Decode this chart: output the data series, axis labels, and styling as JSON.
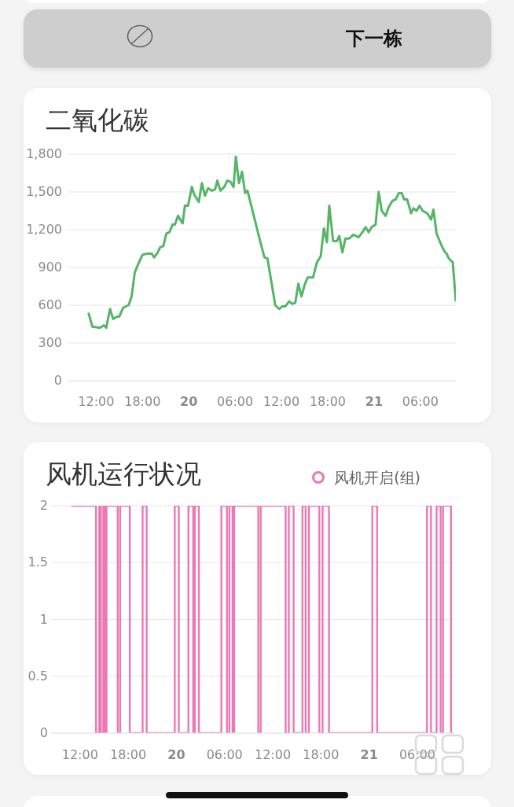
{
  "chart_data": [
    {
      "type": "other",
      "annotations": [
        "下一栋"
      ]
    },
    {
      "type": "line",
      "title": "二氧化碳",
      "color": "#55b567",
      "x": [
        "--01-19T11:00",
        "--01-19T11:30",
        "--01-19T12:30",
        "--01-19T13:00",
        "--01-19T13:18",
        "--01-19T13:48",
        "--01-19T14:12",
        "--01-19T14:42",
        "--01-19T15:00",
        "--01-19T15:30",
        "--01-19T16:12",
        "--01-19T16:36",
        "--01-19T17:00",
        "--01-19T17:24",
        "--01-19T18:00",
        "--01-19T18:36",
        "--01-19T19:12",
        "--01-19T19:30",
        "--01-19T19:54",
        "--01-19T20:18",
        "--01-19T20:42",
        "--01-19T21:06",
        "--01-19T21:30",
        "--01-19T21:54",
        "--01-19T22:12",
        "--01-19T22:36",
        "--01-19T23:12",
        "--01-19T23:30",
        "--01-19T23:54",
        "--01-20T00:24",
        "--01-20T00:42",
        "--01-20T01:18",
        "--01-20T01:42",
        "--01-20T02:06",
        "--01-20T02:30",
        "--01-20T03:00",
        "--01-20T03:24",
        "--01-20T03:42",
        "--01-20T04:06",
        "--01-20T04:36",
        "--01-20T05:00",
        "--01-20T05:24",
        "--01-20T05:48",
        "--01-20T06:06",
        "--01-20T06:30",
        "--01-20T06:54",
        "--01-20T07:18",
        "--01-20T07:36",
        "--01-20T08:06",
        "--01-20T09:12",
        "--01-20T09:48",
        "--01-20T10:12",
        "--01-20T11:12",
        "--01-20T11:42",
        "--01-20T12:06",
        "--01-20T12:30",
        "--01-20T13:00",
        "--01-20T13:24",
        "--01-20T13:48",
        "--01-20T14:12",
        "--01-20T14:36",
        "--01-20T15:00",
        "--01-20T15:24",
        "--01-20T16:06",
        "--01-20T16:36",
        "--01-20T17:06",
        "--01-20T17:30",
        "--01-20T17:54",
        "--01-20T18:12",
        "--01-20T18:42",
        "--01-20T19:12",
        "--01-20T19:30",
        "--01-20T19:54",
        "--01-20T20:18",
        "--01-20T20:48",
        "--01-20T21:18",
        "--01-20T22:00",
        "--01-20T22:30",
        "--01-20T22:54",
        "--01-20T23:18",
        "--01-20T23:42",
        "--01-21T00:12",
        "--01-21T00:36",
        "--01-21T01:00",
        "--01-21T01:30",
        "--01-21T01:54",
        "--01-21T02:24",
        "--01-21T02:48",
        "--01-21T03:12",
        "--01-21T03:36",
        "--01-21T03:54",
        "--01-21T04:18",
        "--01-21T04:48",
        "--01-21T05:06",
        "--01-21T05:30",
        "--01-21T05:54",
        "--01-21T06:18",
        "--01-21T06:54",
        "--01-21T07:24",
        "--01-21T07:42",
        "--01-21T08:06",
        "--01-21T08:42",
        "--01-21T09:06",
        "--01-21T09:24",
        "--01-21T09:42",
        "--01-21T10:12",
        "--01-21T10:36"
      ],
      "values": [
        540,
        430,
        420,
        440,
        420,
        570,
        490,
        510,
        510,
        580,
        600,
        670,
        860,
        920,
        1000,
        1010,
        1010,
        980,
        1010,
        1060,
        1070,
        1170,
        1180,
        1240,
        1240,
        1310,
        1250,
        1390,
        1390,
        1540,
        1480,
        1420,
        1570,
        1470,
        1530,
        1510,
        1520,
        1590,
        1510,
        1540,
        1590,
        1580,
        1540,
        1780,
        1570,
        1660,
        1490,
        1510,
        1390,
        1120,
        980,
        970,
        600,
        570,
        590,
        590,
        630,
        610,
        620,
        770,
        670,
        760,
        820,
        820,
        940,
        990,
        1210,
        1100,
        1390,
        1110,
        1110,
        1150,
        1020,
        1130,
        1130,
        1160,
        1140,
        1180,
        1220,
        1180,
        1220,
        1240,
        1500,
        1350,
        1310,
        1380,
        1430,
        1440,
        1490,
        1490,
        1440,
        1440,
        1330,
        1370,
        1350,
        1390,
        1350,
        1330,
        1280,
        1360,
        1170,
        1080,
        1030,
        1010,
        970,
        940,
        630
      ],
      "xlim": [
        "--01-19T08:24",
        "--01-21T10:36"
      ],
      "ylim": [
        0,
        1800
      ],
      "xticks": [
        {
          "value": "--01-19T12:00",
          "label": "12:00"
        },
        {
          "value": "--01-19T18:00",
          "label": "18:00"
        },
        {
          "value": "--01-20T00:00",
          "label": "20"
        },
        {
          "value": "--01-20T06:00",
          "label": "06:00"
        },
        {
          "value": "--01-20T12:00",
          "label": "12:00"
        },
        {
          "value": "--01-20T18:00",
          "label": "18:00"
        },
        {
          "value": "--01-21T00:00",
          "label": "21"
        },
        {
          "value": "--01-21T06:00",
          "label": "06:00"
        }
      ],
      "yticks": [
        0,
        300,
        600,
        900,
        {
          "value": 1200,
          "label": "1,200"
        },
        {
          "value": 1500,
          "label": "1,500"
        },
        {
          "value": 1800,
          "label": "1,800"
        }
      ],
      "grid": "y"
    },
    {
      "type": "step",
      "title": "风机运行状况",
      "legend": "top right",
      "series": [
        {
          "name": "风机开启(组)",
          "color": "#ec78b4",
          "x": [
            "--01-19T10:54",
            "--01-19T14:00",
            "--01-19T14:24",
            "--01-19T14:36",
            "--01-19T14:54",
            "--01-19T15:06",
            "--01-19T15:18",
            "--01-19T16:42",
            "--01-19T17:00",
            "--01-19T18:12",
            "--01-19T19:48",
            "--01-19T20:18",
            "--01-19T23:48",
            "--01-20T00:18",
            "--01-20T01:30",
            "--01-20T02:06",
            "--01-20T02:18",
            "--01-20T02:48",
            "--01-20T05:36",
            "--01-20T06:18",
            "--01-20T06:36",
            "--01-20T07:00",
            "--01-20T07:12",
            "--01-20T10:12",
            "--01-20T10:30",
            "--01-20T13:36",
            "--01-20T14:00",
            "--01-20T14:36",
            "--01-20T15:42",
            "--01-20T16:06",
            "--01-20T16:30",
            "--01-20T17:48",
            "--01-20T18:12",
            "--01-20T19:00",
            "--01-21T00:24",
            "--01-21T01:00",
            "--01-21T07:12",
            "--01-21T07:42",
            "--01-21T08:24",
            "--01-21T08:54",
            "--01-21T09:12",
            "--01-21T10:12",
            "--01-21T10:24"
          ],
          "values": [
            2,
            0,
            2,
            0,
            2,
            0,
            2,
            0,
            2,
            0,
            2,
            0,
            2,
            0,
            2,
            0,
            2,
            0,
            2,
            0,
            2,
            0,
            2,
            0,
            2,
            0,
            2,
            0,
            2,
            0,
            2,
            0,
            2,
            0,
            2,
            0,
            2,
            0,
            2,
            0,
            2,
            0,
            0
          ]
        }
      ],
      "xlim": [
        "--01-19T08:24",
        "--01-21T10:36"
      ],
      "ylim": [
        0,
        2
      ],
      "xticks": [
        {
          "value": "--01-19T12:00",
          "label": "12:00"
        },
        {
          "value": "--01-19T18:00",
          "label": "18:00"
        },
        {
          "value": "--01-20T00:00",
          "label": "20"
        },
        {
          "value": "--01-20T06:00",
          "label": "06:00"
        },
        {
          "value": "--01-20T12:00",
          "label": "12:00"
        },
        {
          "value": "--01-20T18:00",
          "label": "18:00"
        },
        {
          "value": "--01-21T00:00",
          "label": "21"
        },
        {
          "value": "--01-21T06:00",
          "label": "06:00"
        }
      ],
      "yticks": [
        0,
        0.5,
        1,
        1.5,
        2
      ],
      "grid": "y"
    }
  ]
}
